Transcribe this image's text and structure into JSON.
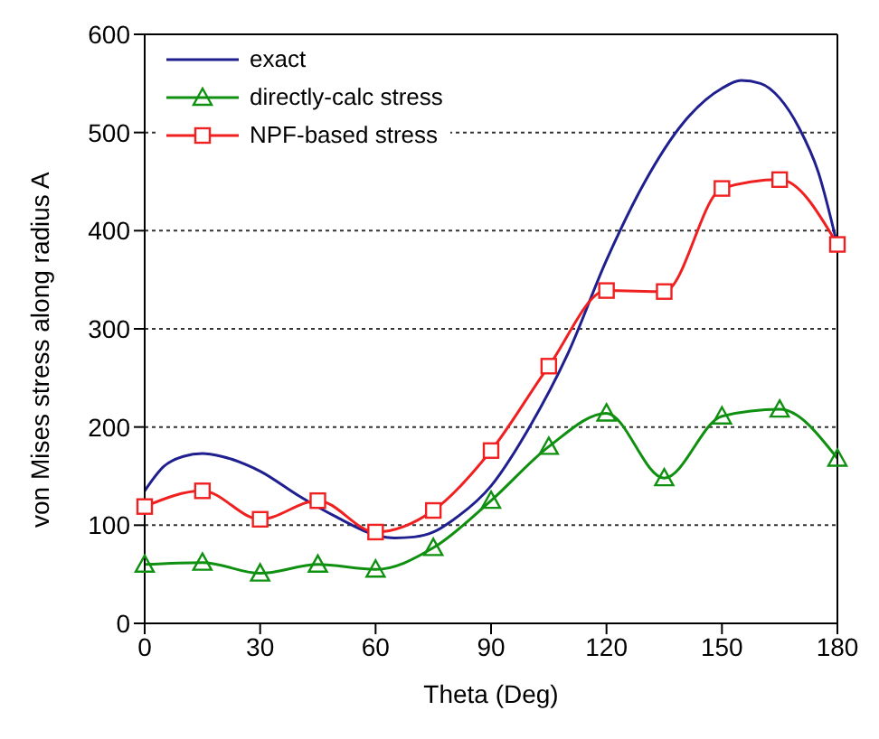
{
  "chart_data": {
    "type": "line",
    "xlabel": "Theta (Deg)",
    "ylabel": "von Mises stress along radius A",
    "xlim": [
      0,
      180
    ],
    "xticks": [
      0,
      30,
      60,
      90,
      120,
      150,
      180
    ],
    "ylim": [
      0,
      600
    ],
    "yticks": [
      0,
      100,
      200,
      300,
      400,
      500,
      600
    ],
    "grid": "y",
    "legend": "top left",
    "series": [
      {
        "name": "exact",
        "color": "#1f1f8f",
        "marker": "none",
        "x": [
          0,
          5,
          10,
          15,
          20,
          30,
          40,
          50,
          60,
          65,
          70,
          75,
          80,
          90,
          100,
          110,
          120,
          130,
          140,
          150,
          155,
          160,
          165,
          170,
          175,
          180
        ],
        "values": [
          135,
          160,
          170,
          173,
          170,
          155,
          130,
          108,
          90,
          87,
          88,
          93,
          105,
          140,
          200,
          275,
          370,
          450,
          510,
          545,
          553,
          550,
          535,
          505,
          460,
          385
        ]
      },
      {
        "name": "directly-calc stress",
        "color": "#109010",
        "marker": "triangle",
        "x": [
          0,
          15,
          30,
          45,
          60,
          75,
          90,
          105,
          120,
          135,
          150,
          165,
          180
        ],
        "values": [
          60,
          62,
          51,
          60,
          55,
          77,
          125,
          180,
          214,
          148,
          211,
          218,
          168
        ]
      },
      {
        "name": "NPF-based stress",
        "color": "#f02020",
        "marker": "square",
        "x": [
          0,
          15,
          30,
          45,
          60,
          75,
          90,
          105,
          120,
          135,
          150,
          165,
          180
        ],
        "values": [
          119,
          135,
          106,
          125,
          93,
          115,
          176,
          262,
          339,
          338,
          443,
          452,
          386
        ]
      }
    ]
  }
}
